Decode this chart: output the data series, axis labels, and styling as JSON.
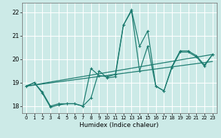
{
  "xlabel": "Humidex (Indice chaleur)",
  "xlim": [
    -0.5,
    23.5
  ],
  "ylim": [
    17.7,
    22.4
  ],
  "yticks": [
    18,
    19,
    20,
    21,
    22
  ],
  "xticks": [
    0,
    1,
    2,
    3,
    4,
    5,
    6,
    7,
    8,
    9,
    10,
    11,
    12,
    13,
    14,
    15,
    16,
    17,
    18,
    19,
    20,
    21,
    22,
    23
  ],
  "bg_color": "#cceae7",
  "line_color": "#1a7a6e",
  "grid_color": "#ffffff",
  "series": [
    {
      "x": [
        0,
        1,
        2,
        3,
        4,
        5,
        6,
        7,
        8,
        9,
        10,
        11,
        12,
        13,
        14,
        15,
        16,
        17,
        18,
        19,
        20,
        21,
        22,
        23
      ],
      "y": [
        18.85,
        19.0,
        18.6,
        18.0,
        18.1,
        18.1,
        18.1,
        18.0,
        19.6,
        19.3,
        19.25,
        19.35,
        21.45,
        22.1,
        20.55,
        21.2,
        18.85,
        18.65,
        19.7,
        20.35,
        20.35,
        20.15,
        19.75,
        20.2
      ]
    },
    {
      "x": [
        0,
        1,
        2,
        3,
        4,
        5,
        6,
        7,
        8,
        9,
        10,
        11,
        12,
        13,
        14,
        15,
        16,
        17,
        18,
        19,
        20,
        21,
        22,
        23
      ],
      "y": [
        18.85,
        19.0,
        18.55,
        17.95,
        18.05,
        18.1,
        18.1,
        18.0,
        18.35,
        19.5,
        19.2,
        19.25,
        21.45,
        22.05,
        19.5,
        20.55,
        18.85,
        18.65,
        19.65,
        20.3,
        20.3,
        20.1,
        19.7,
        20.2
      ]
    },
    {
      "x": [
        0,
        23
      ],
      "y": [
        18.85,
        19.9
      ]
    },
    {
      "x": [
        0,
        23
      ],
      "y": [
        18.85,
        20.2
      ]
    }
  ]
}
